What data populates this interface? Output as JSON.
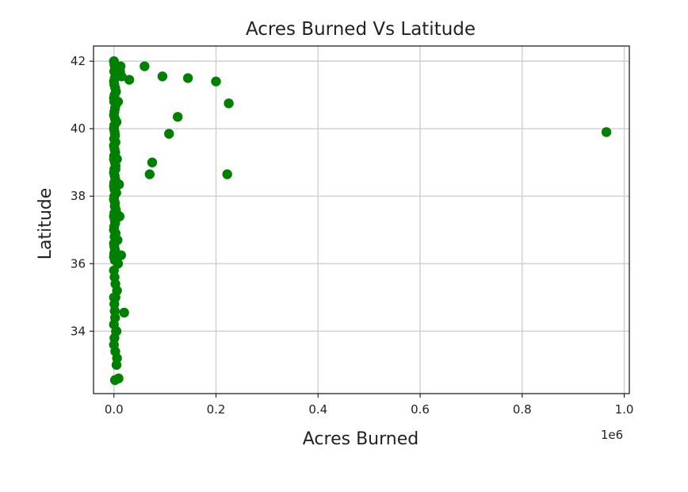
{
  "chart_data": {
    "type": "scatter",
    "title": "Acres Burned Vs Latitude",
    "xlabel": "Acres Burned",
    "ylabel": "Latitude",
    "x_offset_text": "1e6",
    "xlim": [
      -40000,
      1010000
    ],
    "ylim": [
      32.15,
      42.45
    ],
    "x_ticks": [
      0,
      200000,
      400000,
      600000,
      800000,
      1000000
    ],
    "x_tick_labels": [
      "0.0",
      "0.2",
      "0.4",
      "0.6",
      "0.8",
      "1.0"
    ],
    "y_ticks": [
      34,
      36,
      38,
      40,
      42
    ],
    "y_tick_labels": [
      "34",
      "36",
      "38",
      "40",
      "42"
    ],
    "grid": true,
    "marker_color": "#008000",
    "x": [
      0,
      1000,
      2000,
      500,
      3000,
      1500,
      0,
      800,
      2500,
      4000,
      1200,
      0,
      600,
      3500,
      2000,
      900,
      0,
      1800,
      5000,
      700,
      0,
      1300,
      2200,
      400,
      3000,
      0,
      1100,
      2600,
      500,
      0,
      1900,
      3200,
      800,
      0,
      1400,
      2700,
      600,
      0,
      1000,
      4500,
      700,
      0,
      2100,
      1600,
      3800,
      900,
      0,
      1500,
      2400,
      600,
      0,
      3300,
      1200,
      7000,
      0,
      900,
      2000,
      500,
      0,
      1700,
      8000,
      0,
      1200,
      2800,
      6000,
      0,
      800,
      1500,
      2200,
      0,
      5000,
      1000,
      0,
      2600,
      12000,
      15000,
      13000,
      8000,
      6000,
      3000,
      10000,
      7000,
      14000,
      60000,
      95000,
      145000,
      200000,
      30000,
      225000,
      125000,
      108000,
      965000,
      75000,
      70000,
      222000,
      5000,
      9000,
      11000,
      4000,
      3000,
      20000,
      6000,
      2000
    ],
    "y": [
      42.0,
      41.9,
      41.8,
      41.7,
      41.6,
      41.5,
      41.4,
      41.3,
      41.2,
      41.1,
      41.0,
      40.9,
      40.8,
      40.7,
      40.6,
      40.5,
      40.4,
      40.3,
      40.2,
      40.1,
      40.0,
      39.9,
      39.8,
      39.7,
      39.6,
      39.5,
      39.4,
      39.3,
      39.2,
      39.1,
      39.0,
      38.9,
      38.8,
      38.7,
      38.6,
      38.5,
      38.4,
      38.3,
      38.2,
      38.1,
      38.0,
      37.9,
      37.8,
      37.7,
      37.6,
      37.5,
      37.4,
      37.3,
      37.2,
      37.1,
      37.0,
      36.9,
      36.8,
      36.7,
      36.6,
      36.5,
      36.4,
      36.3,
      36.2,
      36.1,
      36.0,
      35.8,
      35.6,
      35.4,
      35.2,
      35.0,
      34.8,
      34.6,
      34.4,
      34.2,
      34.0,
      33.8,
      33.6,
      33.4,
      41.7,
      41.55,
      41.85,
      40.8,
      39.1,
      38.8,
      38.35,
      37.45,
      36.25,
      41.85,
      41.55,
      41.5,
      41.4,
      41.45,
      40.75,
      40.35,
      39.85,
      39.9,
      39.0,
      38.65,
      38.65,
      33.0,
      32.6,
      37.4,
      34.0,
      35.0,
      34.55,
      33.2,
      32.55
    ]
  }
}
